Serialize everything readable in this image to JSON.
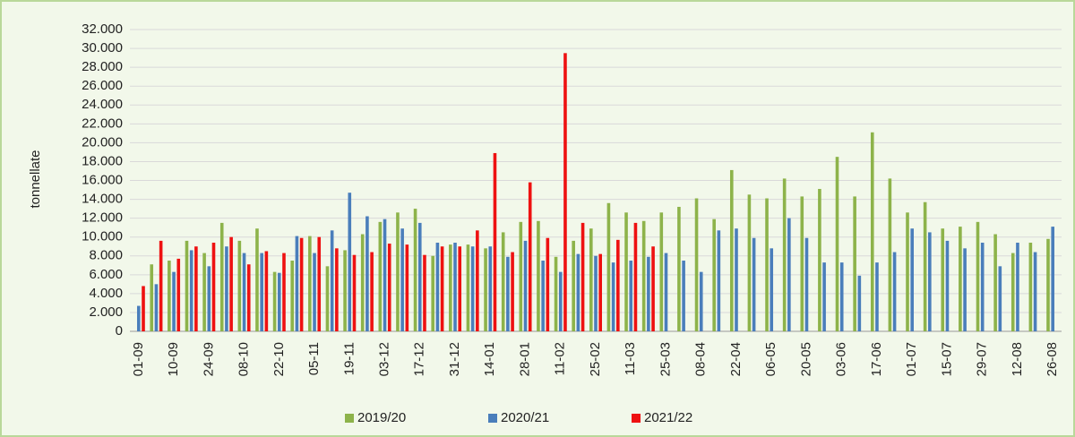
{
  "chart_data": {
    "type": "bar",
    "y_label": "tonnellate",
    "categories": [
      "01-09",
      null,
      "10-09",
      null,
      "24-09",
      null,
      "08-10",
      null,
      "22-10",
      null,
      "05-11",
      null,
      "19-11",
      null,
      "03-12",
      null,
      "17-12",
      null,
      "31-12",
      null,
      "14-01",
      null,
      "28-01",
      null,
      "11-02",
      null,
      "25-02",
      null,
      "11-03",
      null,
      "25-03",
      null,
      "08-04",
      null,
      "22-04",
      null,
      "06-05",
      null,
      "20-05",
      null,
      "03-06",
      null,
      "17-06",
      null,
      "01-07",
      null,
      "15-07",
      null,
      "29-07",
      null,
      "12-08",
      null,
      "26-08"
    ],
    "series": [
      {
        "name": "2019/20",
        "color": "#8db34a",
        "values": [
          null,
          7100,
          7500,
          9600,
          8300,
          11500,
          9600,
          10900,
          6300,
          7500,
          10100,
          6900,
          8600,
          10300,
          11600,
          12600,
          13000,
          8000,
          9200,
          9200,
          8800,
          10500,
          11600,
          11700,
          7900,
          9600,
          10900,
          13600,
          12600,
          11700,
          12600,
          13200,
          14100,
          11900,
          17100,
          14500,
          14100,
          16200,
          14300,
          15100,
          18500,
          14300,
          21100,
          16200,
          12600,
          13700,
          10900,
          11100,
          11600,
          10300,
          8300,
          9400,
          9800
        ]
      },
      {
        "name": "2020/21",
        "color": "#4a7ebb",
        "values": [
          2700,
          5000,
          6300,
          8600,
          6900,
          9000,
          8300,
          8300,
          6200,
          10100,
          8300,
          10700,
          14700,
          12200,
          11900,
          10900,
          11500,
          9400,
          9400,
          9000,
          9000,
          7900,
          9600,
          7500,
          6300,
          8200,
          8000,
          7300,
          7500,
          7900,
          8300,
          7500,
          6300,
          10700,
          10900,
          9900,
          8800,
          12000,
          9900,
          7300,
          7300,
          5900,
          7300,
          8400,
          10900,
          10500,
          9600,
          8800,
          9400,
          6900,
          9400,
          8400,
          11100
        ]
      },
      {
        "name": "2021/22",
        "color": "#ee1111",
        "values": [
          4800,
          9600,
          7700,
          9000,
          9400,
          10000,
          7100,
          8500,
          8300,
          9900,
          10000,
          8800,
          8100,
          8400,
          9300,
          9200,
          8100,
          9000,
          9000,
          10700,
          18900,
          8400,
          15800,
          9900,
          29500,
          11500,
          8200,
          9700,
          11500,
          9000,
          null,
          null,
          null,
          null,
          null,
          null,
          null,
          null,
          null,
          null,
          null,
          null,
          null,
          null,
          null,
          null,
          null,
          null,
          null,
          null,
          null,
          null,
          null
        ]
      }
    ],
    "ylim": [
      0,
      32000
    ],
    "yticks": [
      0,
      {
        "value": 2000,
        "label": "2.000"
      },
      {
        "value": 4000,
        "label": "4.000"
      },
      {
        "value": 6000,
        "label": "6.000"
      },
      {
        "value": 8000,
        "label": "8.000"
      },
      {
        "value": 10000,
        "label": "10.000"
      },
      {
        "value": 12000,
        "label": "12.000"
      },
      {
        "value": 14000,
        "label": "14.000"
      },
      {
        "value": 16000,
        "label": "16.000"
      },
      {
        "value": 18000,
        "label": "18.000"
      },
      {
        "value": 20000,
        "label": "20.000"
      },
      {
        "value": 22000,
        "label": "22.000"
      },
      {
        "value": 24000,
        "label": "24.000"
      },
      {
        "value": 26000,
        "label": "26.000"
      },
      {
        "value": 28000,
        "label": "28.000"
      },
      {
        "value": 30000,
        "label": "30.000"
      },
      {
        "value": 32000,
        "label": "32.000"
      }
    ],
    "grid": true,
    "legend": "bottom"
  }
}
